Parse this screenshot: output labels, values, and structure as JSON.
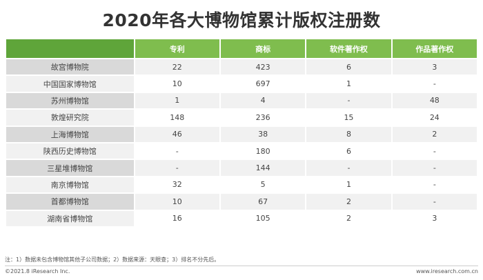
{
  "title": "2020年各大博物馆累计版权注册数",
  "chart_data": {
    "type": "table",
    "title": "2020年各大博物馆累计版权注册数",
    "columns": [
      "",
      "专利",
      "商标",
      "软件著作权",
      "作品著作权"
    ],
    "rows": [
      [
        "故宫博物院",
        "22",
        "423",
        "6",
        "3"
      ],
      [
        "中国国家博物馆",
        "10",
        "697",
        "1",
        "-"
      ],
      [
        "苏州博物馆",
        "1",
        "4",
        "-",
        "48"
      ],
      [
        "敦煌研究院",
        "148",
        "236",
        "15",
        "24"
      ],
      [
        "上海博物馆",
        "46",
        "38",
        "8",
        "2"
      ],
      [
        "陕西历史博物馆",
        "-",
        "180",
        "6",
        "-"
      ],
      [
        "三星堆博物馆",
        "-",
        "144",
        "-",
        "-"
      ],
      [
        "南京博物馆",
        "32",
        "5",
        "1",
        "-"
      ],
      [
        "首都博物馆",
        "10",
        "67",
        "2",
        "-"
      ],
      [
        "湖南省博物馆",
        "16",
        "105",
        "2",
        "3"
      ]
    ]
  },
  "footer": {
    "note": "注：1）数据未包含博物馆其他子公司数据；2）数据来源：天眼查；3）排名不分先后。",
    "copyright": "©2021.8 iResearch Inc.",
    "website": "www.iresearch.com.cn"
  },
  "colors": {
    "header_green": "#7fbd4e",
    "header_green_dark": "#5fa53a",
    "stripe_gray": "#f1f1f1",
    "name_gray": "#d9d9d9"
  }
}
